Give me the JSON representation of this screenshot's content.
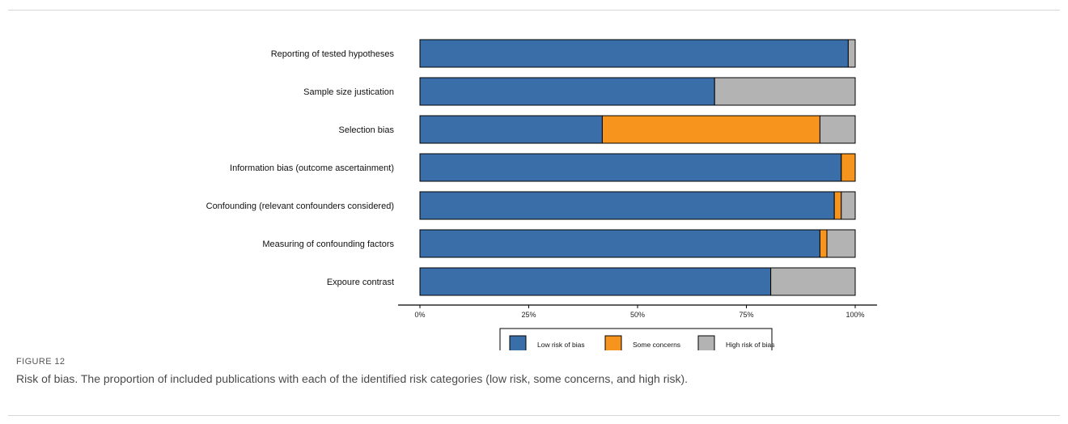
{
  "figure": {
    "label": "FIGURE 12",
    "caption": "Risk of bias. The proportion of included publications with each of the identified risk categories (low risk, some concerns, and high risk)."
  },
  "chart_data": {
    "type": "bar",
    "orientation": "horizontal",
    "stacked": true,
    "title": "",
    "xlabel": "",
    "ylabel": "",
    "xlim": [
      0,
      100
    ],
    "x_ticks": [
      "0%",
      "25%",
      "50%",
      "75%",
      "100%"
    ],
    "x_tick_values": [
      0,
      25,
      50,
      75,
      100
    ],
    "categories": [
      "Reporting of tested hypotheses",
      "Sample size justication",
      "Selection bias",
      "Information bias (outcome ascertainment)",
      "Confounding (relevant confounders considered)",
      "Measuring of confounding factors",
      "Expoure contrast"
    ],
    "series": [
      {
        "name": "Low risk of bias",
        "color": "#3a6ea8",
        "values": [
          98.4,
          67.7,
          41.9,
          96.8,
          95.2,
          91.9,
          80.6
        ]
      },
      {
        "name": "Some concerns",
        "color": "#f7941d",
        "values": [
          0,
          0,
          50.0,
          3.2,
          1.6,
          1.6,
          0
        ]
      },
      {
        "name": "High risk of bias",
        "color": "#b3b3b3",
        "values": [
          1.6,
          32.3,
          8.1,
          0,
          3.2,
          6.5,
          19.4
        ]
      }
    ],
    "grid": false,
    "legend": {
      "placement": "bottom"
    }
  }
}
